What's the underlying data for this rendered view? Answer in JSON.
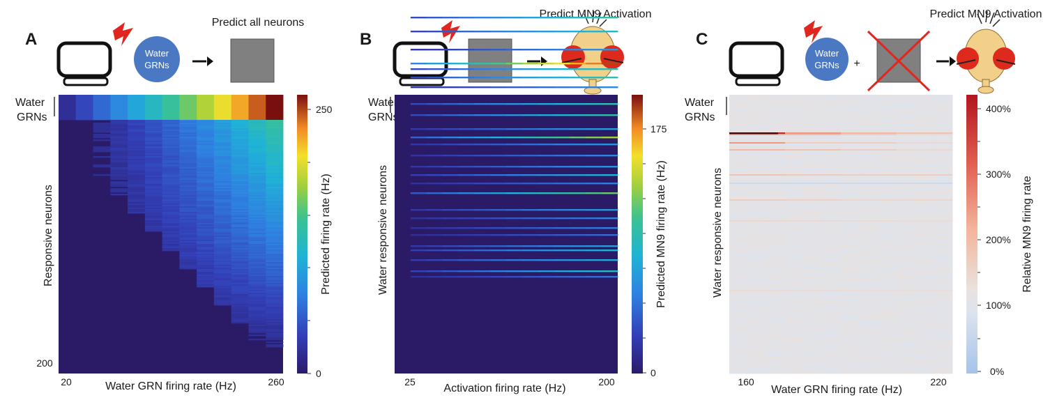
{
  "panels": [
    {
      "letter": "A",
      "schematic_caption": "Predict all neurons",
      "input_bubble": [
        "Water",
        "GRNs"
      ],
      "group_label": [
        "Water",
        "GRNs"
      ],
      "ylabel": "Responsive neurons",
      "xlabel": "Water GRN firing rate (Hz)",
      "x_ticks": [
        "20",
        "260"
      ],
      "y_ticks": [
        "200"
      ],
      "colorbar_label": "Predicted firing rate (Hz)",
      "colorbar_ticks": [
        "250",
        "0"
      ]
    },
    {
      "letter": "B",
      "schematic_caption": "Predict MN9 Activation",
      "group_label": [
        "Water",
        "GRNs"
      ],
      "ylabel": "Water responsive neurons",
      "xlabel": "Activation firing rate (Hz)",
      "x_ticks": [
        "25",
        "200"
      ],
      "colorbar_label": "Predicted MN9 firing rate (Hz)",
      "colorbar_ticks": [
        "175",
        "0"
      ]
    },
    {
      "letter": "C",
      "schematic_caption": "Predict MN9 Activation",
      "input_bubble": [
        "Water",
        "GRNs"
      ],
      "plus": "+",
      "group_label": [
        "Water",
        "GRNs"
      ],
      "ylabel": "Water responsive neurons",
      "xlabel": "Water GRN firing rate (Hz)",
      "x_ticks": [
        "160",
        "220"
      ],
      "colorbar_label": "Relative MN9 firing rate",
      "colorbar_ticks": [
        "400%",
        "300%",
        "200%",
        "100%",
        "0%"
      ]
    }
  ],
  "chart_data": [
    {
      "type": "heatmap",
      "panel": "A",
      "x_range": [
        20,
        260
      ],
      "x_columns": 13,
      "row_count": 200,
      "colorscale": "parula",
      "color_range": [
        0,
        260
      ],
      "top_rows_values": [
        20,
        40,
        60,
        80,
        100,
        120,
        140,
        160,
        180,
        200,
        220,
        240,
        260
      ],
      "pattern": "Water GRN rows scale linearly with input rate; downstream responses decrease with rank and increase with input rate"
    },
    {
      "type": "heatmap",
      "panel": "B",
      "x_range": [
        25,
        200
      ],
      "row_count": 200,
      "colorscale": "parula",
      "color_range": [
        0,
        200
      ],
      "pattern": "Sparse horizontal stripes; most neurons produce little MN9 activation, a few rows reach 175+ Hz at high activation"
    },
    {
      "type": "heatmap",
      "panel": "C",
      "x_range": [
        160,
        220
      ],
      "row_count": 200,
      "colorscale": "coolwarm",
      "color_range": [
        0,
        400
      ],
      "baseline": 100,
      "pattern": "Mostly near 100% with a few rows increased (up to ~400%) and a few decreased"
    }
  ],
  "colors": {
    "bubble": "#4a78c2",
    "box": "#808080",
    "bolt": "#e0261e",
    "cross": "#e0261e",
    "fly_head": "#f2d08a",
    "fly_eye": "#dd2a1c"
  }
}
